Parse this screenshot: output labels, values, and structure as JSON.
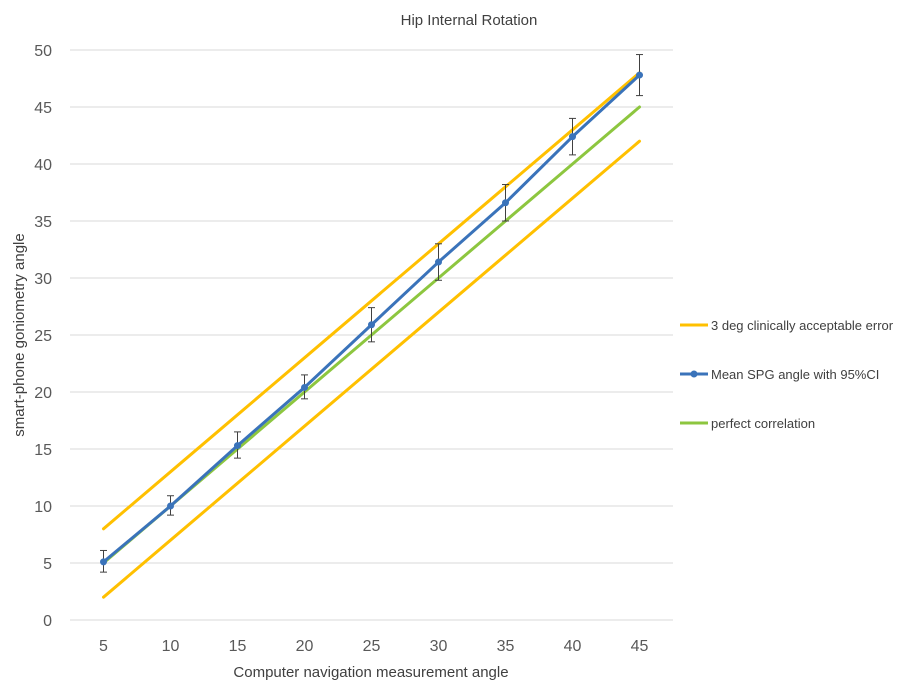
{
  "chart_data": {
    "type": "line",
    "title": "Hip Internal Rotation",
    "xlabel": "Computer navigation measurement angle",
    "ylabel": "smart-phone goniometry angle",
    "categories": [
      "5",
      "10",
      "15",
      "20",
      "25",
      "30",
      "35",
      "40",
      "45"
    ],
    "x": [
      5,
      10,
      15,
      20,
      25,
      30,
      35,
      40,
      45
    ],
    "ylim": [
      0,
      50
    ],
    "yticks": [
      0,
      5,
      10,
      15,
      20,
      25,
      30,
      35,
      40,
      45,
      50
    ],
    "grid": true,
    "legend_position": "right",
    "series": [
      {
        "name": "3 deg clinically acceptable error",
        "color": "#FFC000",
        "values": [
          8,
          13,
          18,
          23,
          28,
          33,
          38,
          43,
          48
        ]
      },
      {
        "name": "",
        "color": "#FFC000",
        "values": [
          2,
          7,
          12,
          17,
          22,
          27,
          32,
          37,
          42
        ]
      },
      {
        "name": "perfect correlation",
        "color": "#8DC63F",
        "values": [
          5,
          10,
          15,
          20,
          25,
          30,
          35,
          40,
          45
        ]
      },
      {
        "name": "Mean SPG angle with 95%CI",
        "color": "#3A73BA",
        "markers": true,
        "values": [
          5.1,
          10.0,
          15.3,
          20.4,
          25.9,
          31.4,
          36.6,
          42.4,
          47.8
        ],
        "ci_lower": [
          4.2,
          9.2,
          14.2,
          19.4,
          24.4,
          29.8,
          35.0,
          40.8,
          46.0
        ],
        "ci_upper": [
          6.1,
          10.9,
          16.5,
          21.5,
          27.4,
          33.0,
          38.2,
          44.0,
          49.6
        ]
      }
    ],
    "legend": [
      {
        "label": "3 deg clinically acceptable error",
        "color": "#FFC000",
        "marker": false
      },
      {
        "label": "Mean SPG angle with 95%CI",
        "color": "#3A73BA",
        "marker": true
      },
      {
        "label": "perfect correlation",
        "color": "#8DC63F",
        "marker": false
      }
    ]
  }
}
